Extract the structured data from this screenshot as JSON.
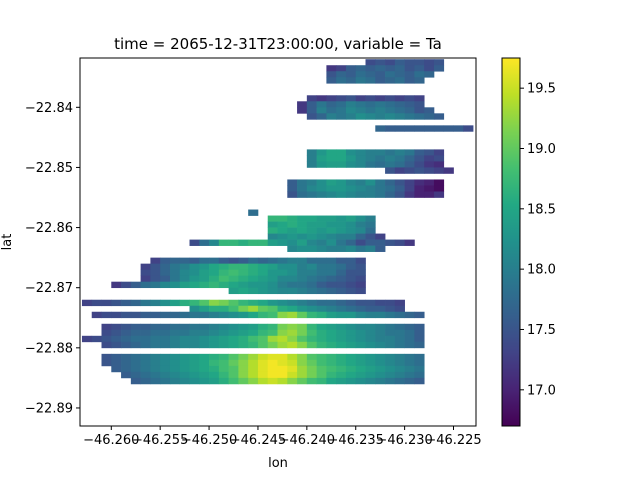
{
  "chart_data": {
    "type": "heatmap",
    "title": "time = 2065-12-31T23:00:00, variable = Ta",
    "xlabel": "lon",
    "ylabel": "lat",
    "x_ticks": [
      {
        "value": -46.26,
        "label": "−46.260"
      },
      {
        "value": -46.255,
        "label": "−46.255"
      },
      {
        "value": -46.25,
        "label": "−46.250"
      },
      {
        "value": -46.245,
        "label": "−46.245"
      },
      {
        "value": -46.24,
        "label": "−46.240"
      },
      {
        "value": -46.235,
        "label": "−46.235"
      },
      {
        "value": -46.23,
        "label": "−46.230"
      },
      {
        "value": -46.225,
        "label": "−46.225"
      }
    ],
    "y_ticks": [
      {
        "value": -22.84,
        "label": "−22.84"
      },
      {
        "value": -22.85,
        "label": "−22.85"
      },
      {
        "value": -22.86,
        "label": "−22.86"
      },
      {
        "value": -22.87,
        "label": "−22.87"
      },
      {
        "value": -22.88,
        "label": "−22.88"
      },
      {
        "value": -22.89,
        "label": "−22.89"
      }
    ],
    "xlim": [
      -46.2632,
      -46.2227
    ],
    "ylim": [
      -22.893,
      -22.8318
    ],
    "colorbar": {
      "colormap": "viridis",
      "vmin": 16.7,
      "vmax": 19.75,
      "ticks": [
        {
          "value": 17.0,
          "label": "17.0"
        },
        {
          "value": 17.5,
          "label": "17.5"
        },
        {
          "value": 18.0,
          "label": "18.0"
        },
        {
          "value": 18.5,
          "label": "18.5"
        },
        {
          "value": 19.0,
          "label": "19.0"
        },
        {
          "value": 19.5,
          "label": "19.5"
        }
      ]
    },
    "grid": false,
    "cell_width_lon": 0.001,
    "cell_height_lat": 0.001,
    "rows": [
      {
        "lat": -22.8325,
        "lon_start": -46.234,
        "values": [
          17.4,
          17.5,
          17.4,
          17.6,
          17.5,
          17.5,
          17.4,
          17.5
        ]
      },
      {
        "lat": -22.8335,
        "lon_start": -46.238,
        "values": [
          17.2,
          17.3,
          17.6,
          17.7,
          17.6,
          17.7,
          17.6,
          17.7,
          17.5,
          17.6,
          17.4,
          17.6
        ]
      },
      {
        "lat": -22.8345,
        "lon_start": -46.238,
        "values": [
          17.5,
          17.7,
          17.6,
          17.8,
          17.7,
          17.6,
          17.8,
          17.7,
          17.6,
          17.8,
          17.7
        ]
      },
      {
        "lat": -22.8355,
        "lon_start": -46.238,
        "values": [
          17.6,
          17.8,
          17.7,
          17.9,
          17.8,
          17.6,
          17.7,
          17.8,
          17.6,
          17.7
        ]
      },
      {
        "lat": -22.8385,
        "lon_start": -46.24,
        "values": [
          17.3,
          17.2,
          17.3,
          17.4,
          17.5,
          17.3,
          17.4,
          17.3,
          17.4,
          17.3,
          17.4,
          17.3
        ]
      },
      {
        "lat": -22.8395,
        "lon_start": -46.241,
        "values": [
          17.2,
          17.6,
          17.9,
          17.7,
          17.8,
          18.0,
          17.9,
          17.8,
          17.9,
          17.8,
          17.7,
          17.6,
          17.5
        ]
      },
      {
        "lat": -22.8405,
        "lon_start": -46.241,
        "values": [
          17.2,
          17.6,
          18.0,
          17.8,
          17.9,
          18.1,
          18.0,
          17.9,
          18.0,
          17.9,
          17.8,
          17.7,
          17.5,
          17.6
        ]
      },
      {
        "lat": -22.8415,
        "lon_start": -46.24,
        "values": [
          17.5,
          17.7,
          18.0,
          17.9,
          18.0,
          18.2,
          18.1,
          18.0,
          18.1,
          18.0,
          17.9,
          17.8,
          17.7,
          17.6
        ]
      },
      {
        "lat": -22.8435,
        "lon_start": -46.233,
        "values": [
          17.7,
          17.6,
          17.6,
          17.6,
          17.6,
          17.6,
          17.6,
          17.6,
          17.6,
          17.4
        ]
      },
      {
        "lat": -22.8475,
        "lon_start": -46.24,
        "values": [
          18.0,
          18.3,
          18.5,
          18.5,
          18.2,
          18.1,
          18.0,
          18.0,
          17.9,
          18.0,
          17.9,
          17.6,
          17.5,
          17.3
        ]
      },
      {
        "lat": -22.8485,
        "lon_start": -46.24,
        "values": [
          18.0,
          18.4,
          18.5,
          18.5,
          18.3,
          18.1,
          18.0,
          17.9,
          18.0,
          17.9,
          17.7,
          17.5,
          17.3,
          17.4
        ]
      },
      {
        "lat": -22.8495,
        "lon_start": -46.24,
        "values": [
          18.0,
          18.3,
          18.4,
          18.4,
          18.2,
          18.1,
          17.9,
          17.8,
          17.9,
          17.8,
          17.6,
          17.4,
          17.2,
          17.1
        ]
      },
      {
        "lat": -22.8505,
        "lon_start": -46.232,
        "values": [
          17.5,
          17.3,
          17.4,
          17.5,
          17.4,
          17.3,
          17.2
        ]
      },
      {
        "lat": -22.8525,
        "lon_start": -46.242,
        "values": [
          17.6,
          17.9,
          18.0,
          18.2,
          18.4,
          18.3,
          18.1,
          18.0,
          18.2,
          17.9,
          17.7,
          17.5,
          17.3,
          17.1,
          17.0,
          16.8
        ]
      },
      {
        "lat": -22.8535,
        "lon_start": -46.242,
        "values": [
          17.6,
          17.9,
          18.1,
          18.2,
          18.3,
          18.3,
          18.2,
          18.1,
          18.0,
          17.9,
          17.8,
          17.6,
          17.3,
          17.0,
          16.9,
          16.8
        ]
      },
      {
        "lat": -22.8545,
        "lon_start": -46.242,
        "values": [
          17.5,
          17.8,
          17.9,
          18.0,
          18.1,
          18.2,
          18.1,
          18.0,
          18.0,
          17.9,
          17.7,
          17.5,
          17.2,
          17.0,
          17.0,
          17.2
        ]
      },
      {
        "lat": -22.8575,
        "lon_start": -46.246,
        "values": [
          17.8
        ]
      },
      {
        "lat": -22.8585,
        "lon_start": -46.244,
        "values": [
          18.7,
          18.7,
          18.6,
          18.5,
          18.5,
          18.4,
          18.4,
          18.3,
          18.4,
          18.2,
          18.0
        ]
      },
      {
        "lat": -22.8595,
        "lon_start": -46.244,
        "values": [
          18.4,
          18.5,
          18.6,
          18.5,
          18.4,
          18.4,
          18.3,
          18.3,
          18.2,
          18.0,
          17.9
        ]
      },
      {
        "lat": -22.8605,
        "lon_start": -46.244,
        "values": [
          18.6,
          18.5,
          18.4,
          18.5,
          18.4,
          18.3,
          18.4,
          18.3,
          18.2,
          18.1,
          17.8
        ]
      },
      {
        "lat": -22.8615,
        "lon_start": -46.244,
        "values": [
          18.1,
          18.2,
          18.3,
          18.2,
          18.3,
          18.2,
          18.1,
          18.0,
          18.0,
          17.7,
          17.5,
          17.3
        ]
      },
      {
        "lat": -22.8625,
        "lon_start": -46.252,
        "values": [
          17.4,
          17.8,
          18.1,
          18.7,
          18.7,
          18.6,
          18.7,
          18.7,
          18.4,
          18.3,
          18.2,
          18.4,
          18.1,
          18.0,
          18.2,
          17.9,
          17.7,
          17.4,
          17.6,
          17.6,
          17.5,
          17.4,
          17.2
        ]
      },
      {
        "lat": -22.8635,
        "lon_start": -46.242,
        "values": [
          18.1,
          18.2,
          18.2,
          18.1,
          18.0,
          18.0,
          18.1,
          17.9,
          18.0,
          17.6
        ]
      },
      {
        "lat": -22.8655,
        "lon_start": -46.256,
        "values": [
          17.3,
          17.6,
          17.7,
          17.7,
          17.6,
          17.8,
          17.8,
          17.6,
          17.5,
          17.6,
          17.8,
          17.7,
          17.8,
          17.9,
          18.0,
          18.0,
          17.8,
          17.8,
          17.8,
          17.6,
          17.6,
          17.4
        ]
      },
      {
        "lat": -22.8665,
        "lon_start": -46.257,
        "values": [
          17.3,
          17.5,
          17.7,
          17.9,
          18.0,
          18.2,
          18.3,
          18.5,
          18.6,
          18.7,
          18.7,
          18.6,
          18.5,
          18.4,
          18.2,
          18.2,
          18.0,
          18.1,
          17.9,
          17.9,
          17.8,
          17.6,
          17.5
        ]
      },
      {
        "lat": -22.8675,
        "lon_start": -46.257,
        "values": [
          17.4,
          17.5,
          17.7,
          17.9,
          18.1,
          18.2,
          18.4,
          18.5,
          18.7,
          18.8,
          18.7,
          18.6,
          18.5,
          18.3,
          18.3,
          18.2,
          18.0,
          18.0,
          17.9,
          17.9,
          17.7,
          17.5,
          17.5
        ]
      },
      {
        "lat": -22.8685,
        "lon_start": -46.257,
        "values": [
          17.3,
          17.5,
          17.6,
          17.9,
          18.1,
          18.3,
          18.4,
          18.6,
          18.8,
          18.7,
          18.6,
          18.5,
          18.4,
          18.3,
          18.1,
          18.1,
          18.0,
          17.9,
          17.8,
          17.7,
          17.6,
          17.5,
          17.4
        ]
      },
      {
        "lat": -22.8695,
        "lon_start": -46.26,
        "values": [
          17.2,
          17.4,
          17.6,
          17.8,
          17.9,
          18.1,
          18.2,
          18.4,
          18.5,
          18.6,
          18.7,
          18.6,
          18.5,
          18.4,
          18.3,
          18.3,
          18.2,
          18.0,
          17.9,
          17.9,
          17.8,
          17.6,
          17.5,
          17.5,
          17.4,
          17.3
        ]
      },
      {
        "lat": -22.8705,
        "lon_start": -46.248,
        "values": [
          18.4,
          18.5,
          18.4,
          18.3,
          18.2,
          18.1,
          18.1,
          18.0,
          17.9,
          17.8,
          17.7,
          17.6,
          17.5,
          17.4
        ]
      },
      {
        "lat": -22.8725,
        "lon_start": -46.263,
        "values": [
          17.3,
          17.4,
          17.4,
          17.5,
          17.6,
          17.7,
          17.9,
          18.0,
          18.2,
          18.4,
          18.6,
          18.7,
          18.9,
          19.2,
          19.1,
          18.9,
          18.7,
          18.6,
          18.5,
          18.3,
          18.2,
          18.1,
          18.0,
          17.9,
          17.8,
          17.8,
          17.7,
          17.6,
          17.5,
          17.5,
          17.4,
          17.4,
          17.3
        ]
      },
      {
        "lat": -22.8735,
        "lon_start": -46.252,
        "values": [
          18.2,
          18.4,
          18.6,
          18.6,
          18.8,
          19.1,
          19.3,
          19.0,
          18.9,
          18.6,
          18.5,
          18.3,
          18.2,
          18.1,
          18.0,
          17.9,
          17.8,
          17.7,
          17.6,
          17.6,
          17.5,
          17.4
        ]
      },
      {
        "lat": -22.8745,
        "lon_start": -46.262,
        "values": [
          17.3,
          17.4,
          17.4,
          17.5,
          17.5,
          17.6,
          17.6,
          17.7,
          17.7,
          17.8,
          17.9,
          17.9,
          18.0,
          18.1,
          18.2,
          18.3,
          18.5,
          18.7,
          18.8,
          19.2,
          19.3,
          19.0,
          18.7,
          18.6,
          18.4,
          18.3,
          18.3,
          18.1,
          18.0,
          18.0,
          17.9,
          17.8,
          17.7,
          17.6
        ]
      },
      {
        "lat": -22.8765,
        "lon_start": -46.261,
        "values": [
          17.3,
          17.4,
          17.5,
          17.6,
          17.6,
          17.7,
          17.7,
          17.8,
          17.8,
          17.9,
          17.9,
          18.0,
          18.1,
          18.2,
          18.3,
          18.4,
          18.6,
          18.7,
          19.1,
          19.2,
          19.1,
          18.7,
          18.5,
          18.4,
          18.3,
          18.2,
          18.1,
          18.1,
          18.0,
          17.9,
          17.8,
          17.7,
          17.6
        ]
      },
      {
        "lat": -22.8775,
        "lon_start": -46.261,
        "values": [
          17.4,
          17.5,
          17.6,
          17.7,
          17.7,
          17.8,
          17.8,
          17.9,
          17.9,
          18.0,
          18.0,
          18.1,
          18.2,
          18.3,
          18.4,
          18.5,
          18.7,
          18.8,
          19.2,
          19.3,
          19.1,
          18.8,
          18.6,
          18.5,
          18.4,
          18.3,
          18.2,
          18.1,
          18.0,
          17.9,
          17.9,
          17.8,
          17.6
        ]
      },
      {
        "lat": -22.8785,
        "lon_start": -46.263,
        "values": [
          17.3,
          17.4,
          17.5,
          17.6,
          17.7,
          17.8,
          17.8,
          17.9,
          17.9,
          18.0,
          18.1,
          18.1,
          18.2,
          18.3,
          18.4,
          18.5,
          18.6,
          18.8,
          18.9,
          19.3,
          19.4,
          19.2,
          18.9,
          18.7,
          18.6,
          18.5,
          18.4,
          18.3,
          18.2,
          18.1,
          18.0,
          18.0,
          17.9,
          17.8,
          17.6
        ]
      },
      {
        "lat": -22.8795,
        "lon_start": -46.261,
        "values": [
          17.4,
          17.5,
          17.6,
          17.7,
          17.8,
          17.9,
          17.9,
          18.0,
          18.1,
          18.1,
          18.2,
          18.3,
          18.4,
          18.5,
          18.6,
          18.7,
          18.9,
          19.1,
          19.3,
          19.4,
          19.2,
          18.9,
          18.7,
          18.6,
          18.5,
          18.4,
          18.3,
          18.2,
          18.1,
          18.0,
          17.9,
          17.8,
          17.7
        ]
      },
      {
        "lat": -22.8815,
        "lon_start": -46.261,
        "values": [
          17.5,
          17.6,
          17.7,
          17.8,
          17.9,
          18.0,
          18.1,
          18.2,
          18.3,
          18.4,
          18.5,
          18.6,
          18.7,
          18.9,
          19.1,
          19.3,
          19.5,
          19.6,
          19.6,
          19.4,
          19.2,
          18.9,
          18.8,
          18.7,
          18.6,
          18.5,
          18.4,
          18.3,
          18.2,
          18.1,
          18.0,
          17.9,
          17.8
        ]
      },
      {
        "lat": -22.8825,
        "lon_start": -46.261,
        "values": [
          17.5,
          17.6,
          17.7,
          17.8,
          17.9,
          18.0,
          18.1,
          18.2,
          18.3,
          18.4,
          18.5,
          18.7,
          18.8,
          19.0,
          19.2,
          19.4,
          19.6,
          19.7,
          19.6,
          19.5,
          19.2,
          19.0,
          18.8,
          18.7,
          18.6,
          18.5,
          18.4,
          18.3,
          18.2,
          18.1,
          18.0,
          17.9,
          17.8
        ]
      },
      {
        "lat": -22.8835,
        "lon_start": -46.26,
        "values": [
          17.6,
          17.7,
          17.8,
          17.9,
          18.0,
          18.1,
          18.2,
          18.3,
          18.4,
          18.5,
          18.6,
          18.8,
          18.9,
          19.2,
          19.4,
          19.6,
          19.7,
          19.7,
          19.6,
          19.3,
          19.1,
          18.9,
          18.8,
          18.7,
          18.6,
          18.5,
          18.4,
          18.3,
          18.2,
          18.1,
          18.0,
          17.9
        ]
      },
      {
        "lat": -22.8845,
        "lon_start": -46.259,
        "values": [
          17.6,
          17.7,
          17.8,
          17.9,
          18.0,
          18.1,
          18.2,
          18.3,
          18.4,
          18.5,
          18.7,
          18.9,
          19.2,
          19.4,
          19.6,
          19.7,
          19.7,
          19.5,
          19.3,
          19.1,
          18.9,
          18.7,
          18.6,
          18.5,
          18.4,
          18.3,
          18.2,
          18.1,
          18.0,
          17.9,
          17.8
        ]
      },
      {
        "lat": -22.8855,
        "lon_start": -46.258,
        "values": [
          17.6,
          17.7,
          17.8,
          17.9,
          18.0,
          18.1,
          18.2,
          18.3,
          18.4,
          18.6,
          18.8,
          19.0,
          19.2,
          19.4,
          19.5,
          19.4,
          19.2,
          19.0,
          18.8,
          18.7,
          18.5,
          18.4,
          18.3,
          18.2,
          18.1,
          18.0,
          17.9,
          17.8,
          17.7,
          17.6
        ]
      }
    ]
  }
}
